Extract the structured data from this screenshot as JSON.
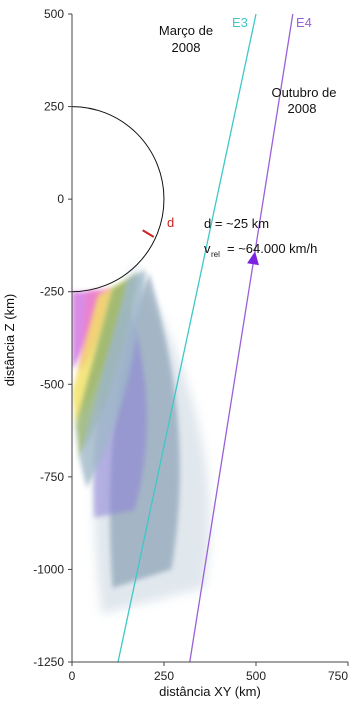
{
  "chart_data": {
    "type": "scatter",
    "xlabel": "distância XY (km)",
    "ylabel": "distância Z (km)",
    "xlim": [
      0,
      750
    ],
    "ylim": [
      -1250,
      500
    ],
    "x_ticks": [
      "0",
      "250",
      "500",
      "750"
    ],
    "y_ticks": [
      "500",
      "250",
      "0",
      "-250",
      "-500",
      "-750",
      "-1000",
      "-1250"
    ],
    "grid": false,
    "moon": {
      "center_xy": 0,
      "center_z": 0,
      "radius_km": 250
    },
    "series": [
      {
        "name": "E3",
        "color": "#3ec8c8",
        "line_points": [
          [
            125,
            -1250
          ],
          [
            500,
            500
          ]
        ]
      },
      {
        "name": "E4",
        "color": "#9a60d8",
        "line_points": [
          [
            320,
            -1250
          ],
          [
            600,
            500
          ]
        ]
      }
    ],
    "plume": {
      "cloud_color": "#7d96ac",
      "core_color": "#8c80d8",
      "layers_colors": [
        "#d070e0",
        "#f080c8",
        "#f2e060",
        "#90b070",
        "#9fb8c9"
      ]
    },
    "annotations": {
      "label_e3": "E3",
      "label_e4": "E4",
      "label_d": "d",
      "marco_line1": "Março de",
      "marco_line2": "2008",
      "outubro_line1": "Outubro de",
      "outubro_line2": "2008",
      "distance_text": "d = ~25 km",
      "velocity_symbol": "v",
      "velocity_sub": "rel",
      "velocity_value": "= ~64.000 km/h",
      "arrow_color": "#7a22e0",
      "d_color": "#cc2222"
    }
  }
}
